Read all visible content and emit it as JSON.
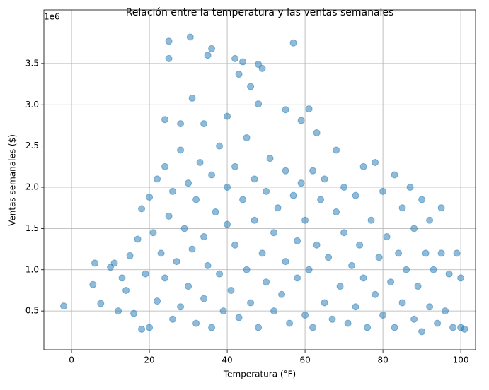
{
  "chart_data": {
    "type": "scatter",
    "title": "Relación entre la temperatura y las ventas semanales",
    "x_label": "Temperatura (°F)",
    "y_label": "Ventas semanales ($)",
    "y_offset_label": "1e6",
    "color": "#1f77b4",
    "grid": true,
    "xlim": [
      -7.1,
      103.8
    ],
    "ylim": [
      0.03,
      4.15
    ],
    "xticks": [
      0,
      20,
      40,
      60,
      80,
      100
    ],
    "yticks": [
      0.5,
      {
        "value": 1,
        "label": "1.0"
      },
      1.5,
      {
        "value": 2,
        "label": "2.0"
      },
      2.5,
      {
        "value": 3,
        "label": "3.0"
      },
      3.5
    ],
    "x": [
      -2,
      5.5,
      6,
      7.5,
      10,
      11,
      25,
      25,
      30.5,
      35,
      36,
      42,
      44,
      48,
      49,
      57,
      43,
      46,
      31,
      48,
      55,
      61,
      59,
      63,
      40,
      24,
      28,
      34,
      12,
      13,
      14,
      15,
      16,
      17,
      18,
      18,
      19,
      20,
      20,
      21,
      22,
      22,
      23,
      24,
      24,
      25,
      26,
      26,
      27,
      28,
      28,
      29,
      30,
      30,
      31,
      32,
      32,
      33,
      34,
      34,
      35,
      36,
      36,
      37,
      38,
      38,
      39,
      40,
      40,
      41,
      42,
      42,
      43,
      44,
      45,
      45,
      46,
      47,
      47,
      48,
      49,
      50,
      50,
      51,
      52,
      52,
      53,
      54,
      55,
      55,
      56,
      57,
      58,
      58,
      59,
      60,
      60,
      61,
      62,
      62,
      63,
      64,
      65,
      65,
      66,
      67,
      68,
      68,
      69,
      70,
      70,
      71,
      72,
      73,
      73,
      74,
      75,
      75,
      76,
      77,
      78,
      78,
      79,
      80,
      80,
      81,
      82,
      83,
      83,
      84,
      85,
      85,
      86,
      87,
      88,
      88,
      89,
      90,
      90,
      91,
      92,
      92,
      93,
      94,
      95,
      95,
      96,
      97,
      98,
      99,
      100,
      100,
      101
    ],
    "values": [
      0.56,
      0.82,
      1.08,
      0.59,
      1.03,
      1.08,
      3.77,
      3.56,
      3.82,
      3.6,
      3.68,
      3.56,
      3.52,
      3.49,
      3.44,
      3.75,
      3.37,
      3.22,
      3.08,
      3.01,
      2.94,
      2.95,
      2.81,
      2.66,
      2.86,
      2.82,
      2.77,
      2.77,
      0.5,
      0.9,
      0.75,
      1.17,
      0.47,
      1.37,
      0.28,
      1.74,
      0.95,
      1.88,
      0.3,
      1.45,
      0.62,
      2.1,
      1.2,
      0.9,
      2.25,
      1.65,
      0.4,
      1.95,
      1.1,
      2.45,
      0.55,
      1.5,
      0.8,
      2.05,
      1.25,
      0.35,
      1.85,
      2.3,
      0.65,
      1.4,
      1.05,
      2.15,
      0.3,
      1.7,
      0.95,
      2.5,
      0.5,
      1.55,
      2.0,
      0.75,
      1.3,
      2.25,
      0.42,
      1.85,
      1.0,
      2.6,
      0.6,
      1.6,
      2.1,
      0.3,
      1.2,
      1.95,
      0.85,
      2.35,
      0.5,
      1.45,
      1.75,
      0.7,
      2.2,
      1.1,
      0.35,
      1.9,
      0.9,
      1.35,
      2.05,
      0.45,
      1.6,
      1.0,
      2.2,
      0.3,
      1.3,
      1.85,
      0.6,
      2.1,
      1.15,
      0.4,
      1.7,
      2.45,
      0.8,
      1.45,
      2.0,
      0.35,
      1.05,
      1.9,
      0.55,
      1.3,
      2.25,
      0.9,
      0.3,
      1.6,
      2.3,
      0.7,
      1.15,
      1.95,
      0.45,
      1.4,
      0.85,
      2.15,
      0.3,
      1.2,
      1.75,
      0.6,
      1.0,
      2.0,
      0.4,
      1.5,
      0.8,
      1.85,
      0.25,
      1.2,
      0.55,
      1.6,
      1.0,
      0.35,
      1.75,
      1.2,
      0.5,
      0.95,
      0.3,
      1.2,
      0.3,
      0.9,
      0.28
    ]
  }
}
